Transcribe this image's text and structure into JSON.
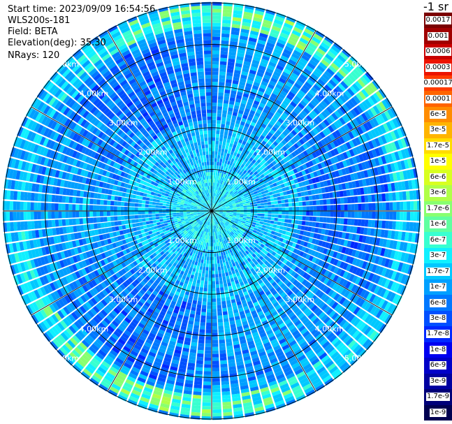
{
  "header": {
    "start_time": "Start time: 2023/09/09 16:54:56",
    "instrument": "WLS200s-181",
    "field": "Field: BETA",
    "elevation": "Elevation(deg): 35.30",
    "nrays": "NRays: 120"
  },
  "colorbar": {
    "unit": "-1 sr",
    "labels": [
      "0.0017",
      "0.001",
      "0.0006",
      "0.0003",
      "0.00017",
      "0.0001",
      "6e-5",
      "3e-5",
      "1.7e-5",
      "1e-5",
      "6e-6",
      "3e-6",
      "1.7e-6",
      "1e-6",
      "6e-7",
      "3e-7",
      "1.7e-7",
      "1e-7",
      "6e-8",
      "3e-8",
      "1.7e-8",
      "1e-8",
      "6e-9",
      "3e-9",
      "1.7e-9",
      "1e-9"
    ],
    "colors": [
      "#7a0000",
      "#a00000",
      "#c80000",
      "#ec1400",
      "#ff3c00",
      "#ff6400",
      "#ff8c00",
      "#ffb400",
      "#ffdc00",
      "#ffff00",
      "#d8ff20",
      "#b0ff48",
      "#88ff70",
      "#60ffa0",
      "#38ffd0",
      "#10f0ff",
      "#00c8ff",
      "#00a0ff",
      "#0078ff",
      "#0050ff",
      "#0028ff",
      "#0000f0",
      "#0000c8",
      "#0000a0",
      "#000078",
      "#000050"
    ]
  },
  "chart_data": {
    "type": "heatmap",
    "projection": "polar PPI scan",
    "n_rays": 120,
    "max_range_km": 5.0,
    "range_rings_km": [
      1.0,
      2.0,
      3.0,
      4.0,
      5.0
    ],
    "ring_labels": [
      "1.00km",
      "2.00km",
      "3.00km",
      "4.00km",
      "5.00km"
    ],
    "dominant_level_range": [
      "1e-8",
      "1e-6"
    ],
    "elevated_band_range_km": [
      4.4,
      4.9
    ],
    "elevated_band_level": "1.7e-6"
  }
}
